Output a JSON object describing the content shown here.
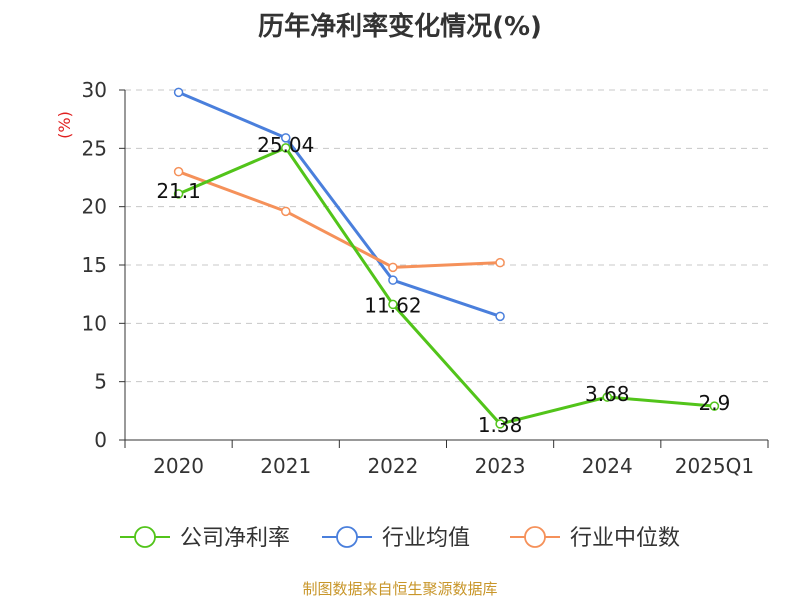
{
  "chart_data": {
    "type": "line",
    "title": "历年净利率变化情况(%)",
    "ylabel": "(%)",
    "xlabel": "",
    "categories": [
      "2020",
      "2021",
      "2022",
      "2023",
      "2024",
      "2025Q1"
    ],
    "ylim": [
      0,
      30
    ],
    "yticks": [
      0,
      5,
      10,
      15,
      20,
      25,
      30
    ],
    "grid": true,
    "legend_position": "bottom",
    "series": [
      {
        "name": "公司净利率",
        "color": "#52c41a",
        "values": [
          21.1,
          25.04,
          11.62,
          1.38,
          3.68,
          2.9
        ],
        "data_labels": [
          "21.1",
          "25.04",
          "11.62",
          "1.38",
          "3.68",
          "2.9"
        ]
      },
      {
        "name": "行业均值",
        "color": "#4a7fdc",
        "values": [
          29.8,
          25.9,
          13.7,
          10.6,
          null,
          null
        ],
        "data_labels": null
      },
      {
        "name": "行业中位数",
        "color": "#f5915a",
        "values": [
          23.0,
          19.6,
          14.8,
          15.2,
          null,
          null
        ],
        "data_labels": null
      }
    ]
  },
  "source": "制图数据来自恒生聚源数据库"
}
